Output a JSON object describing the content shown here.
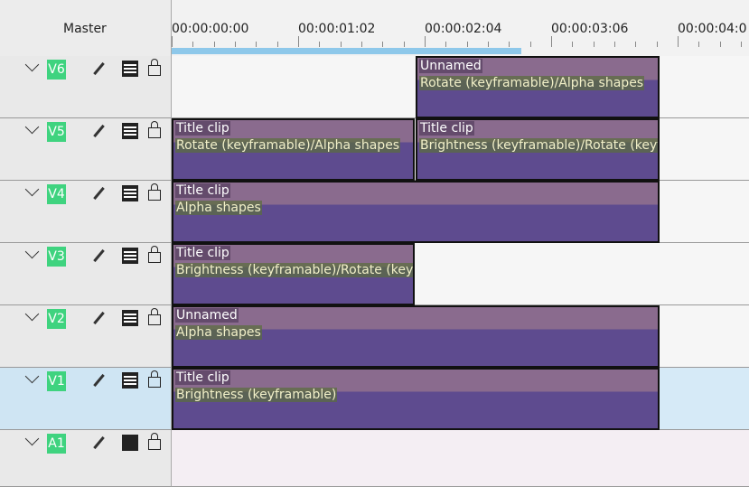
{
  "header": {
    "master": "Master",
    "timecodes": [
      "00:00:00:00",
      "00:00:01:02",
      "00:00:02:04",
      "00:00:03:06",
      "00:00:04:0"
    ]
  },
  "tracks": [
    {
      "name": "V6",
      "clips": [
        {
          "title": "Unnamed",
          "effects": "Rotate (keyframable)/Alpha shapes"
        }
      ]
    },
    {
      "name": "V5",
      "clips": [
        {
          "title": "Title clip",
          "effects": "Rotate (keyframable)/Alpha shapes"
        },
        {
          "title": "Title clip",
          "effects": "Brightness (keyframable)/Rotate (keyf"
        }
      ]
    },
    {
      "name": "V4",
      "clips": [
        {
          "title": "Title clip",
          "effects": "Alpha shapes"
        }
      ]
    },
    {
      "name": "V3",
      "clips": [
        {
          "title": "Title clip",
          "effects": "Brightness (keyframable)/Rotate (keyf"
        }
      ]
    },
    {
      "name": "V2",
      "clips": [
        {
          "title": "Unnamed",
          "effects": "Alpha shapes"
        }
      ]
    },
    {
      "name": "V1",
      "clips": [
        {
          "title": "Title clip",
          "effects": "Brightness (keyframable)"
        }
      ]
    },
    {
      "name": "A1",
      "clips": []
    }
  ]
}
